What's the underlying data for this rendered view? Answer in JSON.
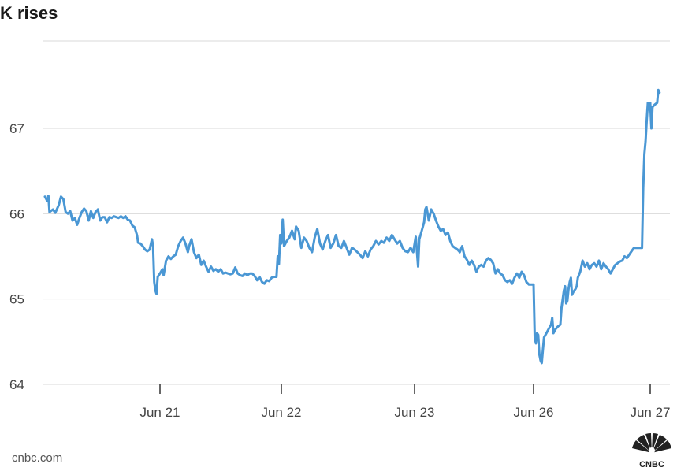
{
  "title": "K rises",
  "source": "cnbc.com",
  "logo_text": "CNBC",
  "colors": {
    "line": "#4a97d4",
    "grid": "#d9d9d9",
    "axis": "#333333",
    "text": "#444444"
  },
  "chart_data": {
    "type": "line",
    "title": "K rises",
    "xlabel": "",
    "ylabel": "",
    "ylim": [
      64,
      68.1
    ],
    "y_ticks": [
      64,
      65,
      66,
      67
    ],
    "x_ticks": [
      {
        "label": "Jun 21",
        "x": 1.0
      },
      {
        "label": "Jun 22",
        "x": 2.0
      },
      {
        "label": "Jun 23",
        "x": 3.0
      },
      {
        "label": "Jun 26",
        "x": 4.0
      },
      {
        "label": "Jun 27",
        "x": 5.0
      }
    ],
    "xlim": [
      0,
      5.17
    ],
    "grid": true,
    "series": [
      {
        "values": [
          [
            0.0,
            66.2
          ],
          [
            0.02,
            66.15
          ],
          [
            0.03,
            66.21
          ],
          [
            0.04,
            66.02
          ],
          [
            0.07,
            66.05
          ],
          [
            0.09,
            66.01
          ],
          [
            0.12,
            66.1
          ],
          [
            0.14,
            66.2
          ],
          [
            0.16,
            66.17
          ],
          [
            0.18,
            66.02
          ],
          [
            0.2,
            66.0
          ],
          [
            0.22,
            66.03
          ],
          [
            0.24,
            65.92
          ],
          [
            0.26,
            65.95
          ],
          [
            0.28,
            65.87
          ],
          [
            0.3,
            65.95
          ],
          [
            0.32,
            66.02
          ],
          [
            0.34,
            66.06
          ],
          [
            0.36,
            66.03
          ],
          [
            0.38,
            65.92
          ],
          [
            0.4,
            66.03
          ],
          [
            0.42,
            65.95
          ],
          [
            0.44,
            66.02
          ],
          [
            0.46,
            66.05
          ],
          [
            0.48,
            65.92
          ],
          [
            0.5,
            65.96
          ],
          [
            0.52,
            65.96
          ],
          [
            0.54,
            65.9
          ],
          [
            0.56,
            65.96
          ],
          [
            0.58,
            65.95
          ],
          [
            0.6,
            65.97
          ],
          [
            0.62,
            65.96
          ],
          [
            0.64,
            65.95
          ],
          [
            0.66,
            65.97
          ],
          [
            0.68,
            65.95
          ],
          [
            0.7,
            65.97
          ],
          [
            0.72,
            65.93
          ],
          [
            0.74,
            65.92
          ],
          [
            0.76,
            65.86
          ],
          [
            0.78,
            65.84
          ],
          [
            0.8,
            65.75
          ],
          [
            0.81,
            65.66
          ],
          [
            0.83,
            65.65
          ],
          [
            0.85,
            65.62
          ],
          [
            0.87,
            65.58
          ],
          [
            0.89,
            65.56
          ],
          [
            0.91,
            65.58
          ],
          [
            0.93,
            65.7
          ],
          [
            0.94,
            65.62
          ],
          [
            0.95,
            65.2
          ],
          [
            0.96,
            65.1
          ],
          [
            0.97,
            65.06
          ],
          [
            0.98,
            65.26
          ],
          [
            1.0,
            65.3
          ],
          [
            1.02,
            65.35
          ],
          [
            1.03,
            65.28
          ],
          [
            1.05,
            65.45
          ],
          [
            1.07,
            65.5
          ],
          [
            1.09,
            65.47
          ],
          [
            1.11,
            65.5
          ],
          [
            1.13,
            65.52
          ],
          [
            1.15,
            65.62
          ],
          [
            1.17,
            65.68
          ],
          [
            1.19,
            65.72
          ],
          [
            1.21,
            65.65
          ],
          [
            1.23,
            65.55
          ],
          [
            1.24,
            65.62
          ],
          [
            1.26,
            65.7
          ],
          [
            1.28,
            65.55
          ],
          [
            1.3,
            65.48
          ],
          [
            1.32,
            65.52
          ],
          [
            1.34,
            65.4
          ],
          [
            1.36,
            65.45
          ],
          [
            1.38,
            65.38
          ],
          [
            1.4,
            65.32
          ],
          [
            1.42,
            65.38
          ],
          [
            1.44,
            65.33
          ],
          [
            1.46,
            65.35
          ],
          [
            1.48,
            65.32
          ],
          [
            1.5,
            65.35
          ],
          [
            1.52,
            65.3
          ],
          [
            1.54,
            65.31
          ],
          [
            1.56,
            65.3
          ],
          [
            1.58,
            65.29
          ],
          [
            1.6,
            65.3
          ],
          [
            1.62,
            65.37
          ],
          [
            1.64,
            65.3
          ],
          [
            1.66,
            65.28
          ],
          [
            1.68,
            65.27
          ],
          [
            1.7,
            65.3
          ],
          [
            1.72,
            65.28
          ],
          [
            1.74,
            65.3
          ],
          [
            1.76,
            65.3
          ],
          [
            1.78,
            65.27
          ],
          [
            1.8,
            65.22
          ],
          [
            1.82,
            65.26
          ],
          [
            1.84,
            65.2
          ],
          [
            1.86,
            65.18
          ],
          [
            1.88,
            65.22
          ],
          [
            1.9,
            65.21
          ],
          [
            1.92,
            65.25
          ],
          [
            1.94,
            65.26
          ],
          [
            1.96,
            65.26
          ],
          [
            1.97,
            65.5
          ],
          [
            1.98,
            65.41
          ],
          [
            1.99,
            65.75
          ],
          [
            2.0,
            65.65
          ],
          [
            2.01,
            65.93
          ],
          [
            2.02,
            65.62
          ],
          [
            2.04,
            65.68
          ],
          [
            2.06,
            65.72
          ],
          [
            2.08,
            65.8
          ],
          [
            2.1,
            65.7
          ],
          [
            2.11,
            65.85
          ],
          [
            2.13,
            65.8
          ],
          [
            2.15,
            65.6
          ],
          [
            2.17,
            65.72
          ],
          [
            2.19,
            65.68
          ],
          [
            2.21,
            65.6
          ],
          [
            2.23,
            65.55
          ],
          [
            2.25,
            65.72
          ],
          [
            2.27,
            65.82
          ],
          [
            2.29,
            65.65
          ],
          [
            2.31,
            65.58
          ],
          [
            2.33,
            65.68
          ],
          [
            2.35,
            65.75
          ],
          [
            2.37,
            65.6
          ],
          [
            2.39,
            65.65
          ],
          [
            2.41,
            65.75
          ],
          [
            2.43,
            65.62
          ],
          [
            2.45,
            65.6
          ],
          [
            2.47,
            65.68
          ],
          [
            2.49,
            65.6
          ],
          [
            2.51,
            65.52
          ],
          [
            2.53,
            65.6
          ],
          [
            2.55,
            65.58
          ],
          [
            2.57,
            65.55
          ],
          [
            2.59,
            65.52
          ],
          [
            2.61,
            65.48
          ],
          [
            2.63,
            65.56
          ],
          [
            2.65,
            65.5
          ],
          [
            2.67,
            65.58
          ],
          [
            2.69,
            65.62
          ],
          [
            2.71,
            65.68
          ],
          [
            2.73,
            65.64
          ],
          [
            2.75,
            65.68
          ],
          [
            2.77,
            65.66
          ],
          [
            2.79,
            65.72
          ],
          [
            2.81,
            65.68
          ],
          [
            2.83,
            65.75
          ],
          [
            2.85,
            65.7
          ],
          [
            2.87,
            65.65
          ],
          [
            2.89,
            65.68
          ],
          [
            2.91,
            65.6
          ],
          [
            2.93,
            65.56
          ],
          [
            2.95,
            65.55
          ],
          [
            2.97,
            65.6
          ],
          [
            2.99,
            65.55
          ],
          [
            3.01,
            65.73
          ],
          [
            3.02,
            65.56
          ],
          [
            3.03,
            65.38
          ],
          [
            3.04,
            65.7
          ],
          [
            3.06,
            65.8
          ],
          [
            3.08,
            65.9
          ],
          [
            3.09,
            66.05
          ],
          [
            3.1,
            66.08
          ],
          [
            3.12,
            65.92
          ],
          [
            3.14,
            66.05
          ],
          [
            3.16,
            66.0
          ],
          [
            3.18,
            65.92
          ],
          [
            3.2,
            65.85
          ],
          [
            3.22,
            65.8
          ],
          [
            3.24,
            65.82
          ],
          [
            3.26,
            65.75
          ],
          [
            3.28,
            65.78
          ],
          [
            3.3,
            65.68
          ],
          [
            3.32,
            65.62
          ],
          [
            3.34,
            65.6
          ],
          [
            3.36,
            65.58
          ],
          [
            3.38,
            65.55
          ],
          [
            3.4,
            65.62
          ],
          [
            3.42,
            65.5
          ],
          [
            3.44,
            65.46
          ],
          [
            3.46,
            65.4
          ],
          [
            3.48,
            65.45
          ],
          [
            3.5,
            65.4
          ],
          [
            3.52,
            65.32
          ],
          [
            3.54,
            65.38
          ],
          [
            3.56,
            65.4
          ],
          [
            3.58,
            65.38
          ],
          [
            3.6,
            65.45
          ],
          [
            3.62,
            65.48
          ],
          [
            3.64,
            65.46
          ],
          [
            3.66,
            65.42
          ],
          [
            3.68,
            65.3
          ],
          [
            3.7,
            65.35
          ],
          [
            3.72,
            65.3
          ],
          [
            3.74,
            65.28
          ],
          [
            3.76,
            65.22
          ],
          [
            3.78,
            65.2
          ],
          [
            3.8,
            65.22
          ],
          [
            3.82,
            65.18
          ],
          [
            3.84,
            65.25
          ],
          [
            3.86,
            65.3
          ],
          [
            3.88,
            65.25
          ],
          [
            3.9,
            65.32
          ],
          [
            3.92,
            65.28
          ],
          [
            3.94,
            65.2
          ],
          [
            3.96,
            65.17
          ],
          [
            3.98,
            65.17
          ],
          [
            4.0,
            65.17
          ],
          [
            4.01,
            64.55
          ],
          [
            4.02,
            64.48
          ],
          [
            4.03,
            64.6
          ],
          [
            4.04,
            64.58
          ],
          [
            4.05,
            64.35
          ],
          [
            4.06,
            64.28
          ],
          [
            4.07,
            64.25
          ],
          [
            4.08,
            64.4
          ],
          [
            4.09,
            64.55
          ],
          [
            4.11,
            64.6
          ],
          [
            4.13,
            64.65
          ],
          [
            4.15,
            64.7
          ],
          [
            4.16,
            64.78
          ],
          [
            4.17,
            64.6
          ],
          [
            4.19,
            64.65
          ],
          [
            4.21,
            64.68
          ],
          [
            4.23,
            64.7
          ],
          [
            4.24,
            64.9
          ],
          [
            4.25,
            65.0
          ],
          [
            4.26,
            65.1
          ],
          [
            4.27,
            65.15
          ],
          [
            4.28,
            64.95
          ],
          [
            4.29,
            64.98
          ],
          [
            4.3,
            65.12
          ],
          [
            4.31,
            65.2
          ],
          [
            4.32,
            65.25
          ],
          [
            4.33,
            65.05
          ],
          [
            4.34,
            65.08
          ],
          [
            4.36,
            65.12
          ],
          [
            4.37,
            65.15
          ],
          [
            4.38,
            65.25
          ],
          [
            4.4,
            65.32
          ],
          [
            4.42,
            65.45
          ],
          [
            4.44,
            65.38
          ],
          [
            4.46,
            65.42
          ],
          [
            4.48,
            65.35
          ],
          [
            4.5,
            65.4
          ],
          [
            4.52,
            65.42
          ],
          [
            4.54,
            65.38
          ],
          [
            4.56,
            65.45
          ],
          [
            4.58,
            65.35
          ],
          [
            4.6,
            65.42
          ],
          [
            4.62,
            65.38
          ],
          [
            4.64,
            65.35
          ],
          [
            4.66,
            65.3
          ],
          [
            4.68,
            65.35
          ],
          [
            4.7,
            65.4
          ],
          [
            4.72,
            65.42
          ],
          [
            4.74,
            65.44
          ],
          [
            4.76,
            65.45
          ],
          [
            4.78,
            65.5
          ],
          [
            4.8,
            65.48
          ],
          [
            4.82,
            65.52
          ],
          [
            4.84,
            65.56
          ],
          [
            4.86,
            65.6
          ],
          [
            4.88,
            65.6
          ],
          [
            4.9,
            65.6
          ],
          [
            4.92,
            65.6
          ],
          [
            4.93,
            65.6
          ],
          [
            4.94,
            66.3
          ],
          [
            4.95,
            66.7
          ],
          [
            4.96,
            66.85
          ],
          [
            4.97,
            67.1
          ],
          [
            4.98,
            67.3
          ],
          [
            4.99,
            67.22
          ],
          [
            5.0,
            67.3
          ],
          [
            5.01,
            67.0
          ],
          [
            5.02,
            67.25
          ],
          [
            5.04,
            67.28
          ],
          [
            5.06,
            67.3
          ],
          [
            5.07,
            67.45
          ],
          [
            5.08,
            67.42
          ]
        ]
      }
    ]
  }
}
